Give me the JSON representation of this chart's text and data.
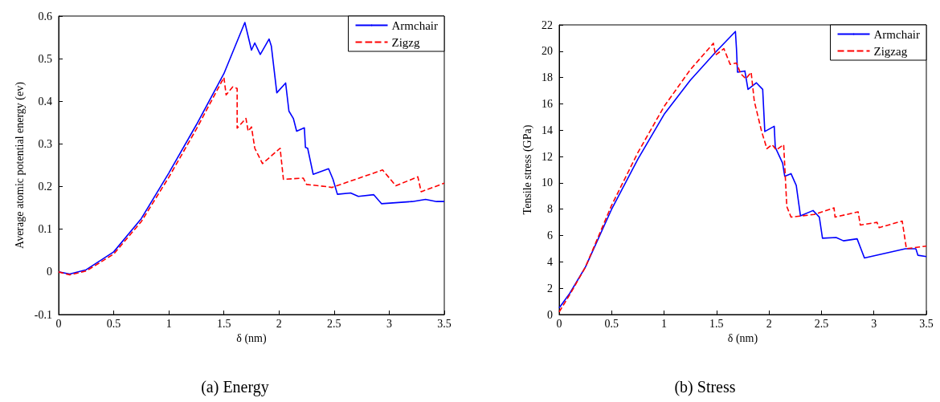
{
  "chart_data": [
    {
      "type": "line",
      "title": "(a) Energy",
      "xlabel": "δ (nm)",
      "ylabel": "Average atomic potential energy (ev)",
      "xlim": [
        0,
        3.5
      ],
      "xticks": [
        0,
        0.5,
        1,
        1.5,
        2,
        2.5,
        3,
        3.5
      ],
      "ylim": [
        -0.1,
        0.6
      ],
      "yticks": [
        -0.1,
        0,
        0.1,
        0.2,
        0.3,
        0.4,
        0.5,
        0.6
      ],
      "legend": "top right",
      "marker": "none",
      "grid": false,
      "series": [
        {
          "name": "Armchair",
          "color": "#0000ff",
          "line_style": "solid",
          "x": [
            0,
            0.1,
            0.25,
            0.5,
            0.75,
            1,
            1.25,
            1.5,
            1.69,
            1.75,
            1.78,
            1.83,
            1.91,
            1.93,
            1.98,
            2.06,
            2.09,
            2.13,
            2.16,
            2.23,
            2.24,
            2.26,
            2.31,
            2.45,
            2.49,
            2.53,
            2.65,
            2.72,
            2.86,
            2.93,
            3.21,
            3.33,
            3.43,
            3.5
          ],
          "values": [
            0,
            -0.005,
            0.005,
            0.047,
            0.125,
            0.232,
            0.345,
            0.465,
            0.585,
            0.52,
            0.537,
            0.51,
            0.546,
            0.53,
            0.42,
            0.443,
            0.377,
            0.36,
            0.33,
            0.338,
            0.292,
            0.29,
            0.229,
            0.242,
            0.217,
            0.182,
            0.185,
            0.177,
            0.181,
            0.16,
            0.165,
            0.17,
            0.165,
            0.165
          ]
        },
        {
          "name": "Zigzg",
          "color": "#ff0000",
          "line_style": "dashed",
          "x": [
            0,
            0.1,
            0.25,
            0.5,
            0.75,
            1,
            1.25,
            1.5,
            1.52,
            1.58,
            1.62,
            1.62,
            1.7,
            1.72,
            1.75,
            1.78,
            1.85,
            2.01,
            2.04,
            2.22,
            2.25,
            2.43,
            2.48,
            2.94,
            3.06,
            3.26,
            3.29,
            3.5
          ],
          "values": [
            0,
            -0.007,
            0.002,
            0.042,
            0.118,
            0.222,
            0.335,
            0.456,
            0.415,
            0.434,
            0.43,
            0.337,
            0.36,
            0.33,
            0.34,
            0.29,
            0.254,
            0.29,
            0.217,
            0.22,
            0.205,
            0.2,
            0.198,
            0.239,
            0.202,
            0.223,
            0.188,
            0.208
          ]
        }
      ]
    },
    {
      "type": "line",
      "title": "(b) Stress",
      "xlabel": "δ (nm)",
      "ylabel": "Tensile stress (GPa)",
      "xlim": [
        0,
        3.5
      ],
      "xticks": [
        0,
        0.5,
        1,
        1.5,
        2,
        2.5,
        3,
        3.5
      ],
      "ylim": [
        0,
        22
      ],
      "yticks": [
        0,
        2,
        4,
        6,
        8,
        10,
        12,
        14,
        16,
        18,
        20,
        22
      ],
      "legend": "top right",
      "marker": "none",
      "grid": false,
      "series": [
        {
          "name": "Armchair",
          "color": "#0000ff",
          "line_style": "solid",
          "x": [
            0,
            0.1,
            0.25,
            0.5,
            0.75,
            1,
            1.25,
            1.5,
            1.68,
            1.69,
            1.7,
            1.77,
            1.8,
            1.88,
            1.94,
            1.96,
            2.05,
            2.06,
            2.13,
            2.15,
            2.21,
            2.26,
            2.3,
            2.42,
            2.48,
            2.51,
            2.64,
            2.71,
            2.84,
            2.91,
            3.3,
            3.4,
            3.42,
            3.5
          ],
          "values": [
            0.5,
            1.6,
            3.6,
            8,
            11.8,
            15.2,
            17.8,
            20,
            21.5,
            20.2,
            18.4,
            18.5,
            17.1,
            17.6,
            17.1,
            13.9,
            14.3,
            12.7,
            11.5,
            10.5,
            10.7,
            9.8,
            7.5,
            7.9,
            7.4,
            5.8,
            5.85,
            5.6,
            5.75,
            4.3,
            5,
            5,
            4.5,
            4.4
          ]
        },
        {
          "name": "Zigzag",
          "color": "#ff0000",
          "line_style": "dashed",
          "x": [
            0,
            0.1,
            0.25,
            0.5,
            0.75,
            1,
            1.25,
            1.47,
            1.49,
            1.57,
            1.63,
            1.69,
            1.73,
            1.78,
            1.83,
            1.86,
            1.93,
            1.98,
            2.03,
            2.07,
            2.14,
            2.17,
            2.21,
            2.43,
            2.62,
            2.63,
            2.85,
            2.87,
            3.03,
            3.05,
            3.27,
            3.31,
            3.5
          ],
          "values": [
            0.2,
            1.5,
            3.6,
            8.3,
            12.3,
            15.8,
            18.6,
            20.6,
            19.7,
            20.2,
            19,
            19.1,
            18.3,
            17.9,
            18.4,
            16.2,
            13.9,
            12.6,
            12.9,
            12.5,
            12.9,
            8.2,
            7.4,
            7.6,
            8.1,
            7.4,
            7.8,
            6.8,
            7,
            6.6,
            7.1,
            5,
            5.2
          ]
        }
      ]
    }
  ]
}
